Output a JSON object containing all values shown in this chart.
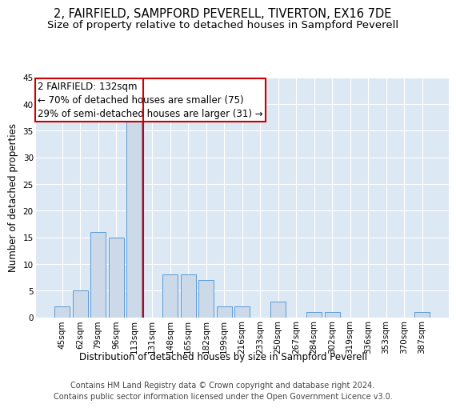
{
  "title": "2, FAIRFIELD, SAMPFORD PEVERELL, TIVERTON, EX16 7DE",
  "subtitle": "Size of property relative to detached houses in Sampford Peverell",
  "xlabel": "Distribution of detached houses by size in Sampford Peverell",
  "ylabel": "Number of detached properties",
  "footer_line1": "Contains HM Land Registry data © Crown copyright and database right 2024.",
  "footer_line2": "Contains public sector information licensed under the Open Government Licence v3.0.",
  "annotation_line1": "2 FAIRFIELD: 132sqm",
  "annotation_line2": "← 70% of detached houses are smaller (75)",
  "annotation_line3": "29% of semi-detached houses are larger (31) →",
  "bar_labels": [
    "45sqm",
    "62sqm",
    "79sqm",
    "96sqm",
    "113sqm",
    "131sqm",
    "148sqm",
    "165sqm",
    "182sqm",
    "199sqm",
    "216sqm",
    "233sqm",
    "250sqm",
    "267sqm",
    "284sqm",
    "302sqm",
    "319sqm",
    "336sqm",
    "353sqm",
    "370sqm",
    "387sqm"
  ],
  "bar_values": [
    2,
    5,
    16,
    15,
    37,
    0,
    8,
    8,
    7,
    2,
    2,
    0,
    3,
    0,
    1,
    1,
    0,
    0,
    0,
    0,
    1
  ],
  "vline_x": 4.5,
  "bar_color": "#ccd9e8",
  "bar_edge_color": "#5b9bd5",
  "vline_color": "#cc0000",
  "annotation_box_color": "#cc0000",
  "background_color": "#dce8f3",
  "ylim": [
    0,
    45
  ],
  "yticks": [
    0,
    5,
    10,
    15,
    20,
    25,
    30,
    35,
    40,
    45
  ],
  "title_fontsize": 10.5,
  "subtitle_fontsize": 9.5,
  "axis_label_fontsize": 8.5,
  "tick_fontsize": 7.5,
  "annotation_fontsize": 8.5,
  "footer_fontsize": 7
}
